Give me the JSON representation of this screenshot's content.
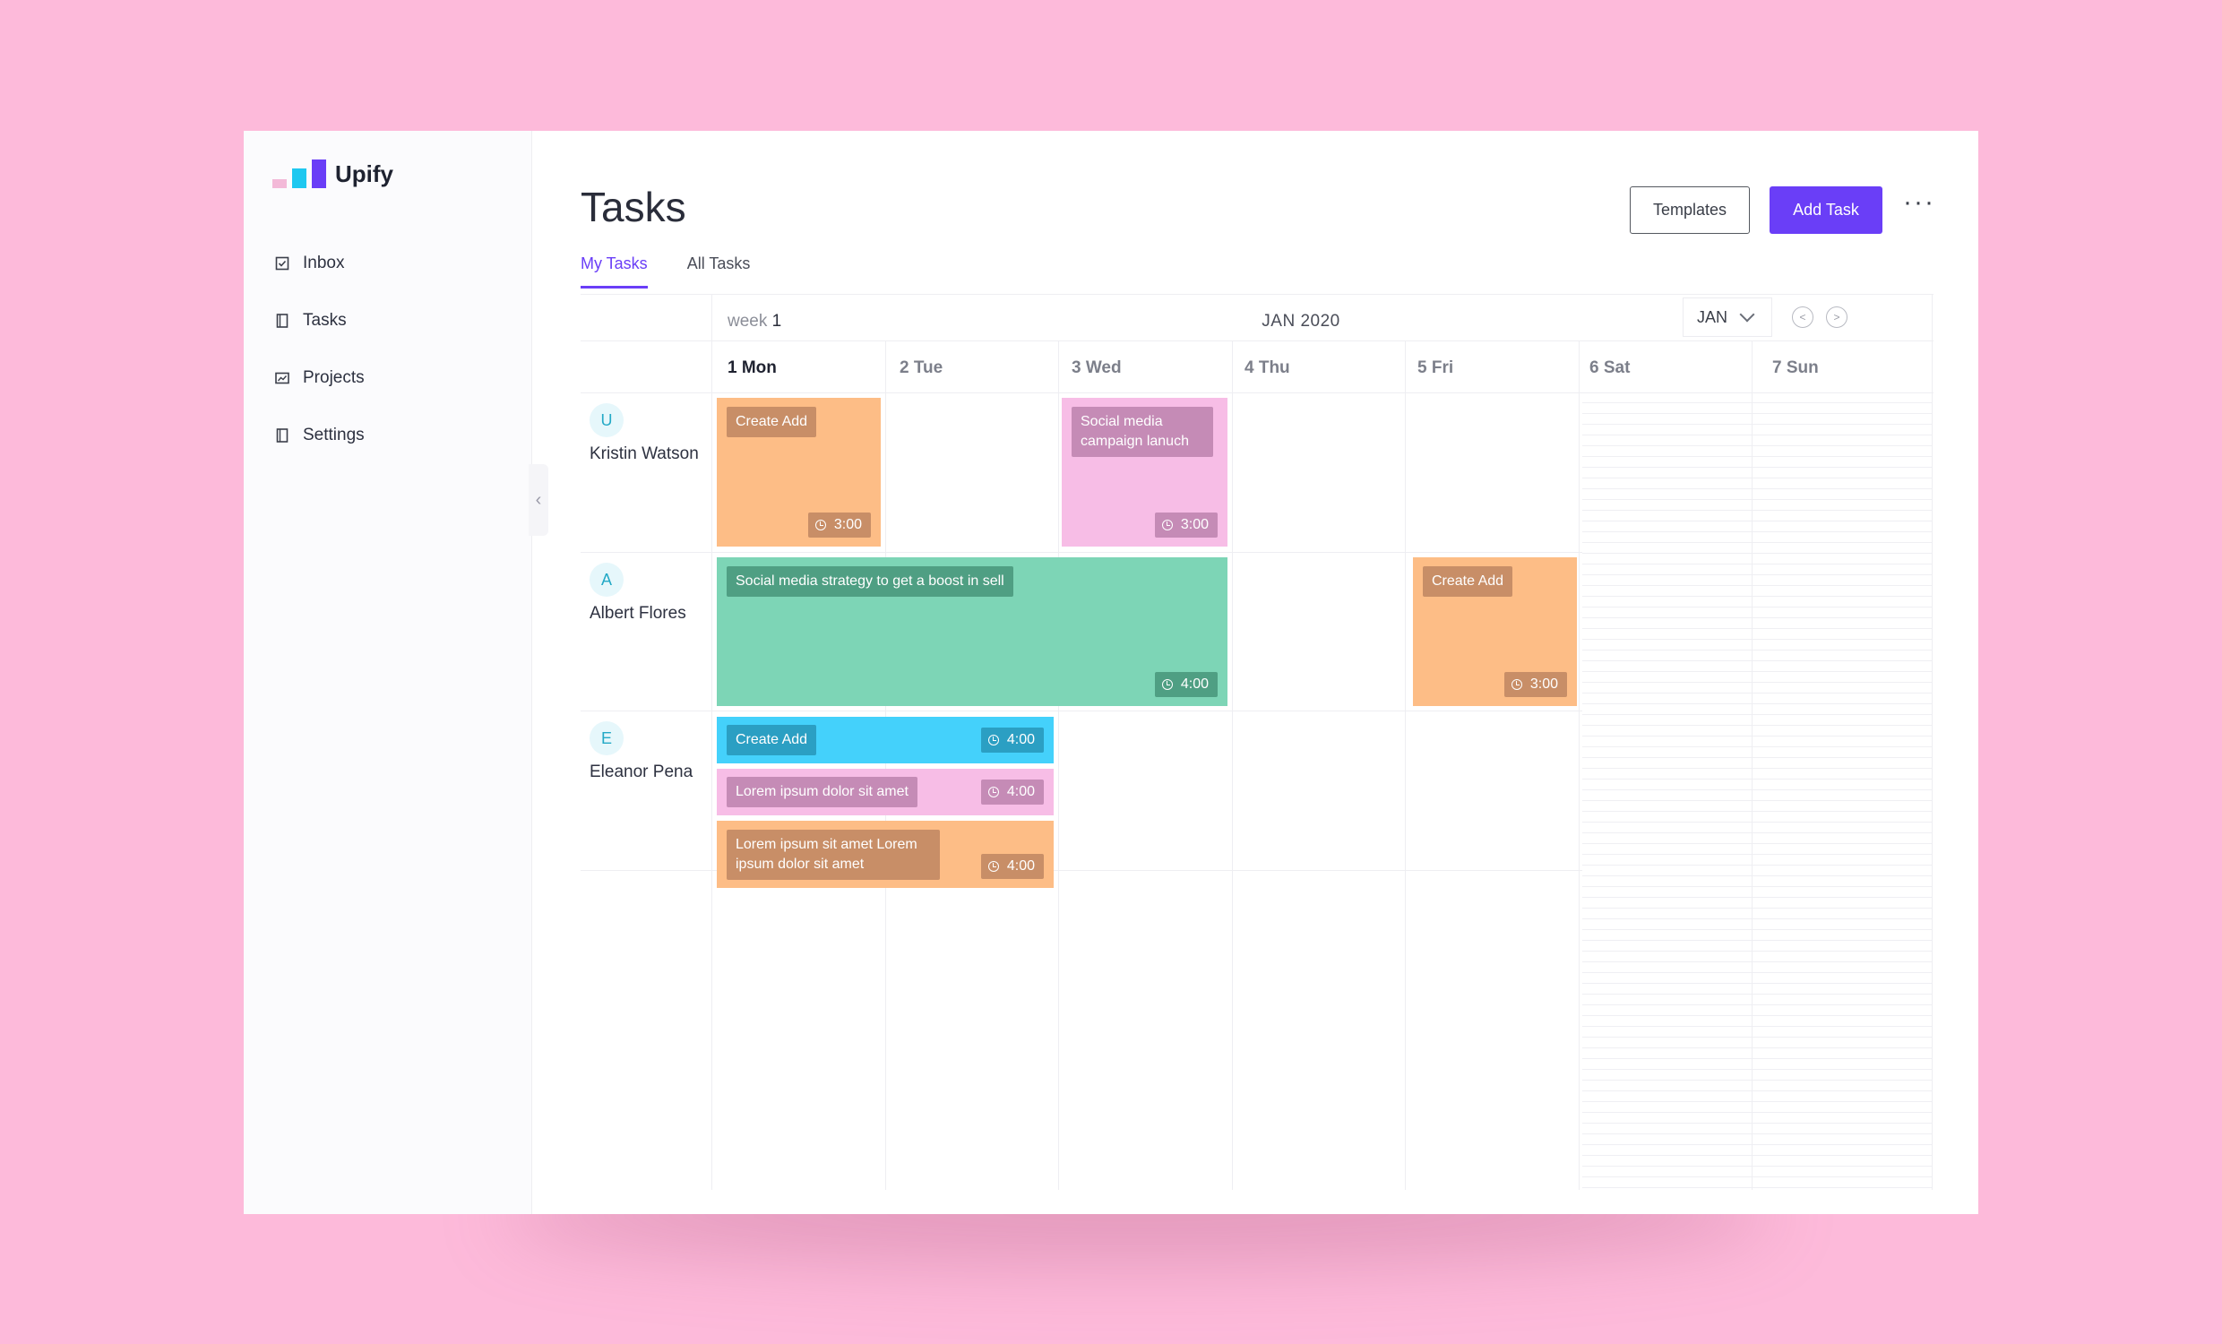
{
  "app": {
    "name": "Upify"
  },
  "sidebar": {
    "items": [
      {
        "label": "Inbox",
        "icon": "inbox-icon"
      },
      {
        "label": "Tasks",
        "icon": "tasks-icon"
      },
      {
        "label": "Projects",
        "icon": "projects-icon"
      },
      {
        "label": "Settings",
        "icon": "settings-icon"
      }
    ]
  },
  "header": {
    "title": "Tasks",
    "templates_label": "Templates",
    "add_task_label": "Add Task",
    "more_label": "···"
  },
  "tabs": [
    {
      "label": "My Tasks",
      "active": true
    },
    {
      "label": "All Tasks",
      "active": false
    }
  ],
  "calendar": {
    "week_prefix": "week",
    "week_number": "1",
    "month_title": "JAN 2020",
    "month_select": "JAN",
    "days": [
      {
        "label": "1 Mon",
        "current": true
      },
      {
        "label": "2 Tue"
      },
      {
        "label": "3 Wed"
      },
      {
        "label": "4 Thu"
      },
      {
        "label": "5 Fri"
      },
      {
        "label": "6 Sat"
      },
      {
        "label": "7 Sun"
      }
    ],
    "people": [
      {
        "initial": "U",
        "name": "Kristin Watson"
      },
      {
        "initial": "A",
        "name": "Albert Flores"
      },
      {
        "initial": "E",
        "name": "Eleanor Pena"
      }
    ],
    "tasks": [
      {
        "title": "Create Add",
        "duration": "3:00",
        "color": "#fdbd86"
      },
      {
        "title": "Social media campaign lanuch",
        "duration": "3:00",
        "color": "#f7bde6"
      },
      {
        "title": "Social media strategy to get a boost in sell",
        "duration": "4:00",
        "color": "#7dd5b6"
      },
      {
        "title": "Create Add",
        "duration": "3:00",
        "color": "#fdbd86"
      },
      {
        "title": "Create Add",
        "duration": "4:00",
        "color": "#44d1fb"
      },
      {
        "title": "Lorem ipsum dolor sit amet",
        "duration": "4:00",
        "color": "#f7bde6"
      },
      {
        "title": "Lorem ipsum sit amet Lorem ipsum dolor sit amet",
        "duration": "4:00",
        "color": "#fdbd86"
      }
    ]
  },
  "colors": {
    "accent": "#6a3ef7",
    "background": "#fdbada"
  }
}
